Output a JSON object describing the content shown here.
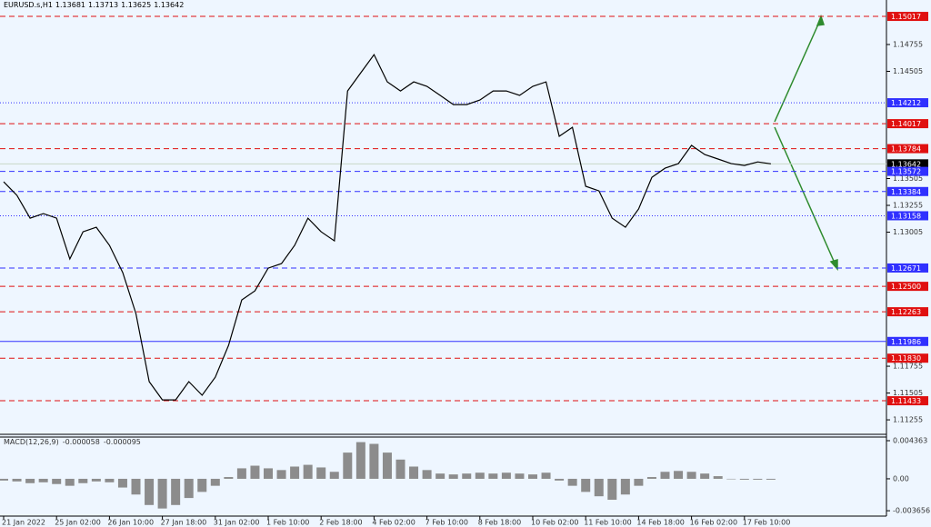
{
  "header": {
    "symbol": "EURUSD.s,H1",
    "ohlc": [
      1.13681,
      1.13713,
      1.13625,
      1.13642
    ]
  },
  "chart_data": [
    {
      "type": "line",
      "color": "#000000",
      "categories": [
        "21 Jan 2022",
        null,
        null,
        null,
        "25 Jan 02:00",
        null,
        null,
        null,
        "26 Jan 10:00",
        null,
        null,
        null,
        "27 Jan 18:00",
        null,
        null,
        null,
        "31 Jan 02:00",
        null,
        null,
        null,
        "1 Feb 10:00",
        null,
        null,
        null,
        "2 Feb 18:00",
        null,
        null,
        null,
        "4 Feb 02:00",
        null,
        null,
        null,
        "7 Feb 10:00",
        null,
        null,
        null,
        "8 Feb 18:00",
        null,
        null,
        null,
        "10 Feb 02:00",
        null,
        null,
        null,
        "11 Feb 10:00",
        null,
        null,
        null,
        "14 Feb 18:00",
        null,
        null,
        null,
        "16 Feb 02:00",
        null,
        null,
        null,
        "17 Feb 10:00",
        null,
        null
      ],
      "values": [
        1.13475,
        1.13348,
        1.13136,
        1.13178,
        1.13136,
        1.12755,
        1.13009,
        1.13051,
        1.12882,
        1.12628,
        1.12246,
        1.11611,
        1.11441,
        1.11441,
        1.11611,
        1.11484,
        1.11653,
        1.1195,
        1.12373,
        1.12458,
        1.1267,
        1.12712,
        1.12882,
        1.13136,
        1.13009,
        1.12924,
        1.14322,
        1.14492,
        1.14661,
        1.14407,
        1.14322,
        1.14407,
        1.14365,
        1.1428,
        1.14195,
        1.14195,
        1.14237,
        1.14322,
        1.14322,
        1.1428,
        1.14365,
        1.14407,
        1.13899,
        1.13983,
        1.13433,
        1.1339,
        1.13136,
        1.13051,
        1.13221,
        1.13517,
        1.13602,
        1.13644,
        1.13814,
        1.13729,
        1.13687,
        1.13644,
        1.13627,
        1.1366,
        1.13642
      ],
      "ylim": [
        1.1112,
        1.1517
      ],
      "yticks": [
        1.14755,
        1.14505,
        1.13505,
        1.13255,
        1.13005,
        1.11755,
        1.11505,
        1.11255
      ],
      "levels": [
        {
          "value": 1.15017,
          "label": "1.15017",
          "color": "#e01010",
          "style": "dash"
        },
        {
          "value": 1.14212,
          "label": "1.14212",
          "color": "#3030ff",
          "style": "dot"
        },
        {
          "value": 1.14017,
          "label": "1.14017",
          "color": "#e01010",
          "style": "dash"
        },
        {
          "value": 1.13784,
          "label": "1.13784",
          "color": "#e01010",
          "style": "dash"
        },
        {
          "value": 1.13642,
          "label": "1.13642",
          "color": "#000000",
          "style": "solid"
        },
        {
          "value": 1.13572,
          "label": "1.13572",
          "color": "#3030ff",
          "style": "dash"
        },
        {
          "value": 1.13384,
          "label": "1.13384",
          "color": "#3030ff",
          "style": "dash"
        },
        {
          "value": 1.13158,
          "label": "1.13158",
          "color": "#3030ff",
          "style": "dot"
        },
        {
          "value": 1.12671,
          "label": "1.12671",
          "color": "#3030ff",
          "style": "dash"
        },
        {
          "value": 1.125,
          "label": "1.12500",
          "color": "#e01010",
          "style": "dash"
        },
        {
          "value": 1.12263,
          "label": "1.12263",
          "color": "#e01010",
          "style": "dash"
        },
        {
          "value": 1.11986,
          "label": "1.11986",
          "color": "#3030ff",
          "style": "solid"
        },
        {
          "value": 1.1183,
          "label": "1.11830",
          "color": "#e01010",
          "style": "dash"
        },
        {
          "value": 1.11433,
          "label": "1.11433",
          "color": "#e01010",
          "style": "dash"
        }
      ]
    },
    {
      "type": "bar",
      "title": "MACD(12,26,9)",
      "readings": [
        -5.8e-05,
        -9.5e-05
      ],
      "color": "#8c8c8c",
      "values": [
        -0.0002,
        -0.0003,
        -0.0005,
        -0.0004,
        -0.0006,
        -0.0008,
        -0.0005,
        -0.0003,
        -0.0004,
        -0.001,
        -0.0018,
        -0.003,
        -0.0034,
        -0.003,
        -0.0022,
        -0.0015,
        -0.0008,
        0.0002,
        0.0012,
        0.0015,
        0.0012,
        0.001,
        0.0014,
        0.0016,
        0.0013,
        0.0008,
        0.003,
        0.0042,
        0.004,
        0.003,
        0.0022,
        0.0014,
        0.001,
        0.0006,
        0.0005,
        0.0006,
        0.0007,
        0.0006,
        0.0007,
        0.0006,
        0.0005,
        0.0007,
        -0.0002,
        -0.0008,
        -0.0015,
        -0.002,
        -0.0024,
        -0.0018,
        -0.0008,
        0.0002,
        0.0008,
        0.0009,
        0.0008,
        0.0006,
        0.0003,
        0,
        -0.0001,
        -0.0001,
        -0.0001
      ],
      "ylim": [
        -0.00427,
        0.00478
      ],
      "yticks": [
        0.004363,
        {
          "value": 0,
          "label": "0.00"
        },
        -0.003656
      ]
    }
  ]
}
